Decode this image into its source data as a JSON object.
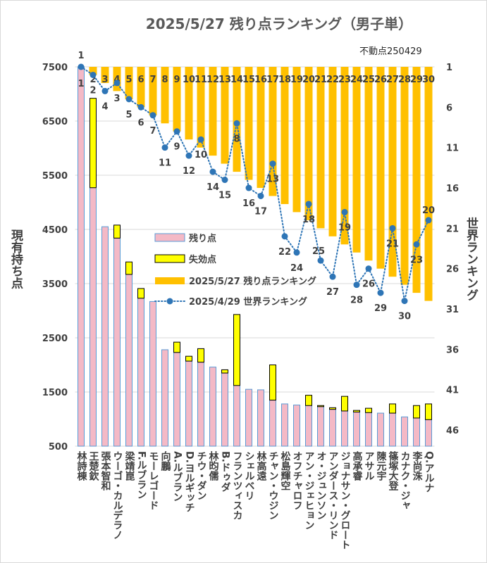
{
  "chart_data": {
    "type": "bar",
    "title": "2025/5/27 残り点ランキング（男子単）",
    "annotation": "不動点250429",
    "ylabel": "現有持ち点",
    "y2label": "世界ランキング",
    "ylim": [
      500,
      7500
    ],
    "yticks": [
      500,
      1500,
      2500,
      3500,
      4500,
      5500,
      6500,
      7500
    ],
    "y2lim": [
      1,
      48
    ],
    "y2ticks": [
      1,
      6,
      11,
      16,
      21,
      26,
      31,
      36,
      41,
      46
    ],
    "y2_reversed": true,
    "grid": true,
    "legend_position": "inside-left",
    "categories": [
      "林詩棟",
      "王楚欽",
      "張本智和",
      "ウーゴ・カルデラノ",
      "梁靖崑",
      "F.ルブラン",
      "モーレゴード",
      "向鵬",
      "A.ルブラン",
      "D.ヨルギッチ",
      "チウ・ダン",
      "林昀儒",
      "B.ドゥダ",
      "フランツィスカ",
      "シェルベリ",
      "林高遠",
      "チャン・ウジン",
      "松島輝空",
      "オフチャロフ",
      "アン・ジェヒョン",
      "オ・ジュンソン",
      "アンダース・リンド",
      "ジョナサン・グロート",
      "高承睿",
      "アサル",
      "陳元宇",
      "篠塚大登",
      "カナク・ジャ",
      "李尚洙",
      "Q.アルナ"
    ],
    "series": [
      {
        "name": "残り点",
        "type": "bar",
        "stacked": true,
        "color": "#f4b9c6",
        "edge_color": "#5b9bd5",
        "values": [
          7500,
          5270,
          4550,
          4340,
          3670,
          3230,
          3170,
          2280,
          2230,
          2070,
          2050,
          1960,
          1850,
          1620,
          1550,
          1540,
          1350,
          1280,
          1260,
          1250,
          1230,
          1180,
          1150,
          1130,
          1120,
          1110,
          1110,
          1040,
          1020,
          990
        ]
      },
      {
        "name": "失効点",
        "type": "bar",
        "stacked": true,
        "color": "#ffff00",
        "edge_color": "#000000",
        "values": [
          0,
          1650,
          0,
          240,
          230,
          180,
          0,
          0,
          190,
          90,
          250,
          0,
          60,
          1310,
          0,
          0,
          650,
          0,
          0,
          190,
          20,
          30,
          270,
          30,
          80,
          0,
          170,
          0,
          230,
          290
        ]
      },
      {
        "name": "2025/5/27 残り点ランキング",
        "type": "bar",
        "secondary_axis": true,
        "data_labels": true,
        "color": "#ffc000",
        "values": [
          1,
          2,
          3,
          4,
          5,
          6,
          7,
          8,
          9,
          10,
          11,
          12,
          13,
          14,
          15,
          16,
          17,
          18,
          19,
          20,
          21,
          22,
          23,
          24,
          25,
          26,
          27,
          28,
          29,
          30
        ]
      },
      {
        "name": "2025/4/29 世界ランキング",
        "type": "line",
        "secondary_axis": true,
        "dotted": true,
        "markers": true,
        "data_labels": true,
        "color": "#2e75b6",
        "values": [
          1,
          2,
          4,
          3,
          5,
          6,
          7,
          11,
          9,
          12,
          10,
          14,
          15,
          8,
          16,
          17,
          13,
          22,
          24,
          18,
          25,
          27,
          19,
          28,
          26,
          29,
          21,
          30,
          23,
          20
        ]
      }
    ]
  }
}
